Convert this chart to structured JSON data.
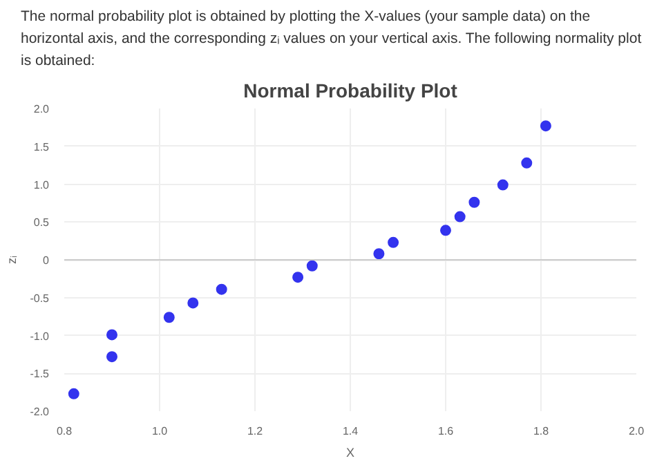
{
  "chart_data": {
    "type": "scatter",
    "title": "Normal Probability Plot",
    "annotations": [
      "The normal probability plot is obtained by plotting the X-values (your sample data) on the horizontal axis, and the corresponding zᵢ values on your vertical axis. The following normality plot is obtained:"
    ],
    "xlabel": "X",
    "ylabel": "zᵢ",
    "x": [
      0.82,
      0.9,
      0.9,
      1.02,
      1.07,
      1.13,
      1.29,
      1.32,
      1.46,
      1.49,
      1.6,
      1.63,
      1.66,
      1.72,
      1.77,
      1.81
    ],
    "series": [
      {
        "color": "#3333ee",
        "values": [
          -1.77,
          -1.28,
          -0.99,
          -0.76,
          -0.57,
          -0.39,
          -0.23,
          -0.08,
          0.08,
          0.23,
          0.39,
          0.57,
          0.76,
          0.99,
          1.28,
          1.77
        ]
      }
    ],
    "xlim": [
      0.8,
      2.0
    ],
    "xticks": [
      0.8,
      {
        "value": 1.0,
        "label": "1.0"
      },
      1.2,
      1.4,
      1.6,
      1.8,
      {
        "value": 2.0,
        "label": "2.0"
      }
    ],
    "ylim": [
      -2.0,
      2.0
    ],
    "yticks": [
      {
        "value": -2.0,
        "label": "-2.0"
      },
      {
        "value": -1.5,
        "label": "-1.5"
      },
      {
        "value": -1.0,
        "label": "-1.0"
      },
      {
        "value": -0.5,
        "label": "-0.5"
      },
      0,
      {
        "value": 0.5,
        "label": "0.5"
      },
      {
        "value": 1.0,
        "label": "1.0"
      },
      {
        "value": 1.5,
        "label": "1.5"
      },
      {
        "value": 2.0,
        "label": "2.0"
      }
    ],
    "ref_lines": [
      {
        "axis": "y",
        "value": 0,
        "color": "#cccccc"
      }
    ],
    "grid": true,
    "marker": "circle"
  }
}
